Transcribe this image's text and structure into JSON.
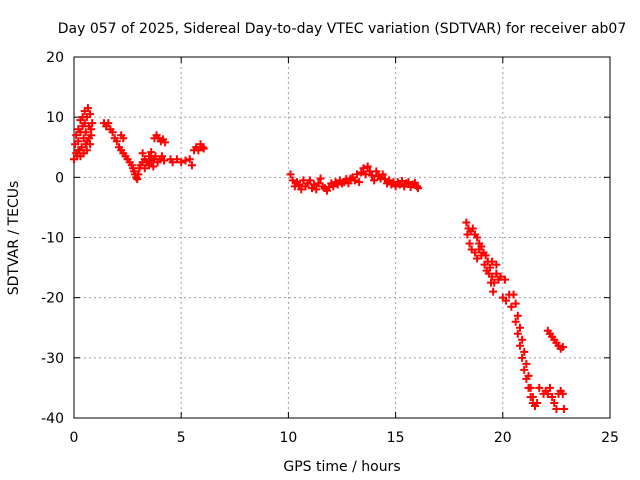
{
  "chart_data": {
    "type": "scatter",
    "title": "Day 057 of 2025, Sidereal Day-to-day VTEC variation (SDTVAR) for receiver ab07",
    "xlabel": "GPS time / hours",
    "ylabel": "SDTVAR / TECUs",
    "xlim": [
      0,
      25
    ],
    "ylim": [
      -40,
      20
    ],
    "xticks": [
      0,
      5,
      10,
      15,
      20,
      25
    ],
    "yticks": [
      -40,
      -30,
      -20,
      -10,
      0,
      10,
      20
    ],
    "xtick_labels": [
      "0",
      "5",
      "10",
      "15",
      "20",
      "25"
    ],
    "ytick_labels": [
      "-40",
      "-30",
      "-20",
      "-10",
      "0",
      "10",
      "20"
    ],
    "grid": true,
    "marker": "plus",
    "series_color": "#ff0000",
    "series": [
      {
        "name": "SDTVAR",
        "points": [
          [
            0.0,
            3.0
          ],
          [
            0.05,
            5.5
          ],
          [
            0.1,
            4.0
          ],
          [
            0.1,
            7.0
          ],
          [
            0.15,
            3.5
          ],
          [
            0.2,
            6.0
          ],
          [
            0.2,
            8.0
          ],
          [
            0.25,
            4.5
          ],
          [
            0.3,
            7.5
          ],
          [
            0.3,
            9.5
          ],
          [
            0.35,
            5.0
          ],
          [
            0.4,
            8.5
          ],
          [
            0.4,
            10.0
          ],
          [
            0.45,
            6.5
          ],
          [
            0.5,
            9.0
          ],
          [
            0.5,
            11.0
          ],
          [
            0.55,
            7.5
          ],
          [
            0.6,
            10.0
          ],
          [
            0.6,
            6.0
          ],
          [
            0.65,
            11.5
          ],
          [
            0.7,
            8.5
          ],
          [
            0.75,
            10.5
          ],
          [
            0.8,
            7.0
          ],
          [
            0.85,
            9.0
          ],
          [
            0.3,
            3.5
          ],
          [
            0.45,
            4.0
          ],
          [
            0.6,
            4.5
          ],
          [
            0.75,
            5.5
          ],
          [
            0.8,
            8.0
          ],
          [
            0.2,
            4.5
          ],
          [
            0.55,
            5.5
          ],
          [
            0.7,
            6.5
          ],
          [
            1.4,
            9.0
          ],
          [
            1.5,
            8.5
          ],
          [
            1.6,
            9.0
          ],
          [
            1.7,
            8.0
          ],
          [
            1.8,
            7.5
          ],
          [
            1.9,
            6.5
          ],
          [
            2.0,
            6.0
          ],
          [
            2.1,
            5.0
          ],
          [
            2.2,
            7.0
          ],
          [
            2.2,
            4.5
          ],
          [
            2.3,
            6.5
          ],
          [
            2.3,
            4.0
          ],
          [
            2.4,
            3.5
          ],
          [
            2.5,
            3.0
          ],
          [
            2.6,
            2.5
          ],
          [
            2.7,
            2.0
          ],
          [
            2.75,
            1.5
          ],
          [
            2.8,
            1.0
          ],
          [
            2.85,
            0.5
          ],
          [
            2.9,
            0.0
          ],
          [
            2.95,
            -0.3
          ],
          [
            3.0,
            0.5
          ],
          [
            3.05,
            1.5
          ],
          [
            3.1,
            2.0
          ],
          [
            3.2,
            2.5
          ],
          [
            3.3,
            3.0
          ],
          [
            3.4,
            2.5
          ],
          [
            3.5,
            3.5
          ],
          [
            3.6,
            2.8
          ],
          [
            3.7,
            3.0
          ],
          [
            3.8,
            3.5
          ],
          [
            3.9,
            2.5
          ],
          [
            4.0,
            3.0
          ],
          [
            4.1,
            3.5
          ],
          [
            4.2,
            2.8
          ],
          [
            3.3,
            1.5
          ],
          [
            3.5,
            2.0
          ],
          [
            3.7,
            1.8
          ],
          [
            3.2,
            4.0
          ],
          [
            3.6,
            4.2
          ],
          [
            3.75,
            6.5
          ],
          [
            3.85,
            7.0
          ],
          [
            3.95,
            6.5
          ],
          [
            4.05,
            6.0
          ],
          [
            4.15,
            6.3
          ],
          [
            4.25,
            5.8
          ],
          [
            4.5,
            3.0
          ],
          [
            4.6,
            2.5
          ],
          [
            4.8,
            3.0
          ],
          [
            5.0,
            2.5
          ],
          [
            5.2,
            2.8
          ],
          [
            5.4,
            3.0
          ],
          [
            5.5,
            2.0
          ],
          [
            5.6,
            4.5
          ],
          [
            5.7,
            5.0
          ],
          [
            5.8,
            4.5
          ],
          [
            5.9,
            5.5
          ],
          [
            6.0,
            5.0
          ],
          [
            6.05,
            4.8
          ],
          [
            10.1,
            0.5
          ],
          [
            10.2,
            -0.5
          ],
          [
            10.3,
            -1.5
          ],
          [
            10.4,
            -0.8
          ],
          [
            10.5,
            -1.2
          ],
          [
            10.6,
            -2.0
          ],
          [
            10.7,
            -0.5
          ],
          [
            10.8,
            -1.5
          ],
          [
            10.9,
            -1.0
          ],
          [
            11.0,
            -0.5
          ],
          [
            11.1,
            -1.8
          ],
          [
            11.2,
            -1.2
          ],
          [
            11.3,
            -2.0
          ],
          [
            11.4,
            -1.0
          ],
          [
            11.5,
            -0.2
          ],
          [
            11.6,
            -1.5
          ],
          [
            11.7,
            -1.8
          ],
          [
            11.8,
            -2.2
          ],
          [
            11.9,
            -1.6
          ],
          [
            12.0,
            -1.0
          ],
          [
            12.1,
            -1.5
          ],
          [
            12.2,
            -0.8
          ],
          [
            12.3,
            -1.2
          ],
          [
            12.4,
            -0.5
          ],
          [
            12.5,
            -1.0
          ],
          [
            12.6,
            -0.8
          ],
          [
            12.7,
            -0.3
          ],
          [
            12.8,
            -1.0
          ],
          [
            12.9,
            -0.2
          ],
          [
            13.0,
            0.0
          ],
          [
            13.1,
            -0.5
          ],
          [
            13.2,
            0.5
          ],
          [
            13.3,
            -0.8
          ],
          [
            13.4,
            0.8
          ],
          [
            13.5,
            1.5
          ],
          [
            13.6,
            0.5
          ],
          [
            13.7,
            1.8
          ],
          [
            13.8,
            1.0
          ],
          [
            13.9,
            0.3
          ],
          [
            14.0,
            -0.5
          ],
          [
            14.1,
            1.0
          ],
          [
            14.2,
            0.2
          ],
          [
            14.3,
            -0.2
          ],
          [
            14.4,
            0.5
          ],
          [
            14.5,
            -0.3
          ],
          [
            14.6,
            -1.0
          ],
          [
            14.7,
            -0.5
          ],
          [
            14.8,
            -1.2
          ],
          [
            14.9,
            -0.8
          ],
          [
            15.0,
            -1.5
          ],
          [
            15.1,
            -0.8
          ],
          [
            15.2,
            -1.2
          ],
          [
            15.3,
            -0.6
          ],
          [
            15.4,
            -1.5
          ],
          [
            15.5,
            -1.0
          ],
          [
            15.6,
            -0.8
          ],
          [
            15.7,
            -1.6
          ],
          [
            15.8,
            -1.2
          ],
          [
            15.9,
            -0.9
          ],
          [
            16.0,
            -1.5
          ],
          [
            16.05,
            -1.8
          ],
          [
            18.3,
            -7.5
          ],
          [
            18.35,
            -9.5
          ],
          [
            18.4,
            -8.5
          ],
          [
            18.45,
            -11.0
          ],
          [
            18.5,
            -9.0
          ],
          [
            18.55,
            -12.0
          ],
          [
            18.6,
            -8.5
          ],
          [
            18.7,
            -9.5
          ],
          [
            18.8,
            -10.0
          ],
          [
            18.9,
            -11.0
          ],
          [
            19.0,
            -11.5
          ],
          [
            19.1,
            -12.5
          ],
          [
            19.2,
            -13.0
          ],
          [
            19.3,
            -14.0
          ],
          [
            19.4,
            -15.0
          ],
          [
            19.5,
            -16.5
          ],
          [
            19.6,
            -17.5
          ],
          [
            19.7,
            -16.0
          ],
          [
            19.8,
            -17.0
          ],
          [
            19.15,
            -14.5
          ],
          [
            19.25,
            -15.5
          ],
          [
            19.35,
            -16.0
          ],
          [
            19.45,
            -17.5
          ],
          [
            19.55,
            -19.0
          ],
          [
            18.7,
            -12.5
          ],
          [
            18.8,
            -13.5
          ],
          [
            18.9,
            -12.0
          ],
          [
            19.0,
            -13.0
          ],
          [
            19.5,
            -14.0
          ],
          [
            19.7,
            -14.5
          ],
          [
            19.9,
            -16.5
          ],
          [
            20.0,
            -20.0
          ],
          [
            20.15,
            -20.5
          ],
          [
            20.3,
            -19.5
          ],
          [
            20.1,
            -17.0
          ],
          [
            20.4,
            -21.5
          ],
          [
            20.5,
            -19.5
          ],
          [
            20.6,
            -21.0
          ],
          [
            20.7,
            -23.0
          ],
          [
            20.8,
            -25.0
          ],
          [
            20.9,
            -27.0
          ],
          [
            21.0,
            -29.0
          ],
          [
            21.1,
            -31.0
          ],
          [
            21.2,
            -33.0
          ],
          [
            21.3,
            -35.0
          ],
          [
            21.4,
            -36.5
          ],
          [
            21.5,
            -38.0
          ],
          [
            21.6,
            -37.5
          ],
          [
            21.7,
            -35.0
          ],
          [
            20.6,
            -24.0
          ],
          [
            20.7,
            -26.0
          ],
          [
            20.8,
            -28.0
          ],
          [
            20.9,
            -30.0
          ],
          [
            21.0,
            -32.0
          ],
          [
            21.1,
            -33.5
          ],
          [
            21.2,
            -35.0
          ],
          [
            21.3,
            -36.5
          ],
          [
            21.4,
            -37.5
          ],
          [
            21.9,
            -36.0
          ],
          [
            22.0,
            -35.5
          ],
          [
            22.1,
            -36.0
          ],
          [
            22.2,
            -35.0
          ],
          [
            22.3,
            -36.5
          ],
          [
            22.4,
            -37.5
          ],
          [
            22.5,
            -38.5
          ],
          [
            22.6,
            -36.0
          ],
          [
            22.7,
            -35.5
          ],
          [
            22.8,
            -36.0
          ],
          [
            22.85,
            -38.5
          ],
          [
            22.1,
            -25.5
          ],
          [
            22.2,
            -26.0
          ],
          [
            22.3,
            -26.5
          ],
          [
            22.4,
            -27.0
          ],
          [
            22.5,
            -27.5
          ],
          [
            22.6,
            -28.0
          ],
          [
            22.7,
            -28.5
          ],
          [
            22.8,
            -28.2
          ]
        ]
      }
    ]
  }
}
